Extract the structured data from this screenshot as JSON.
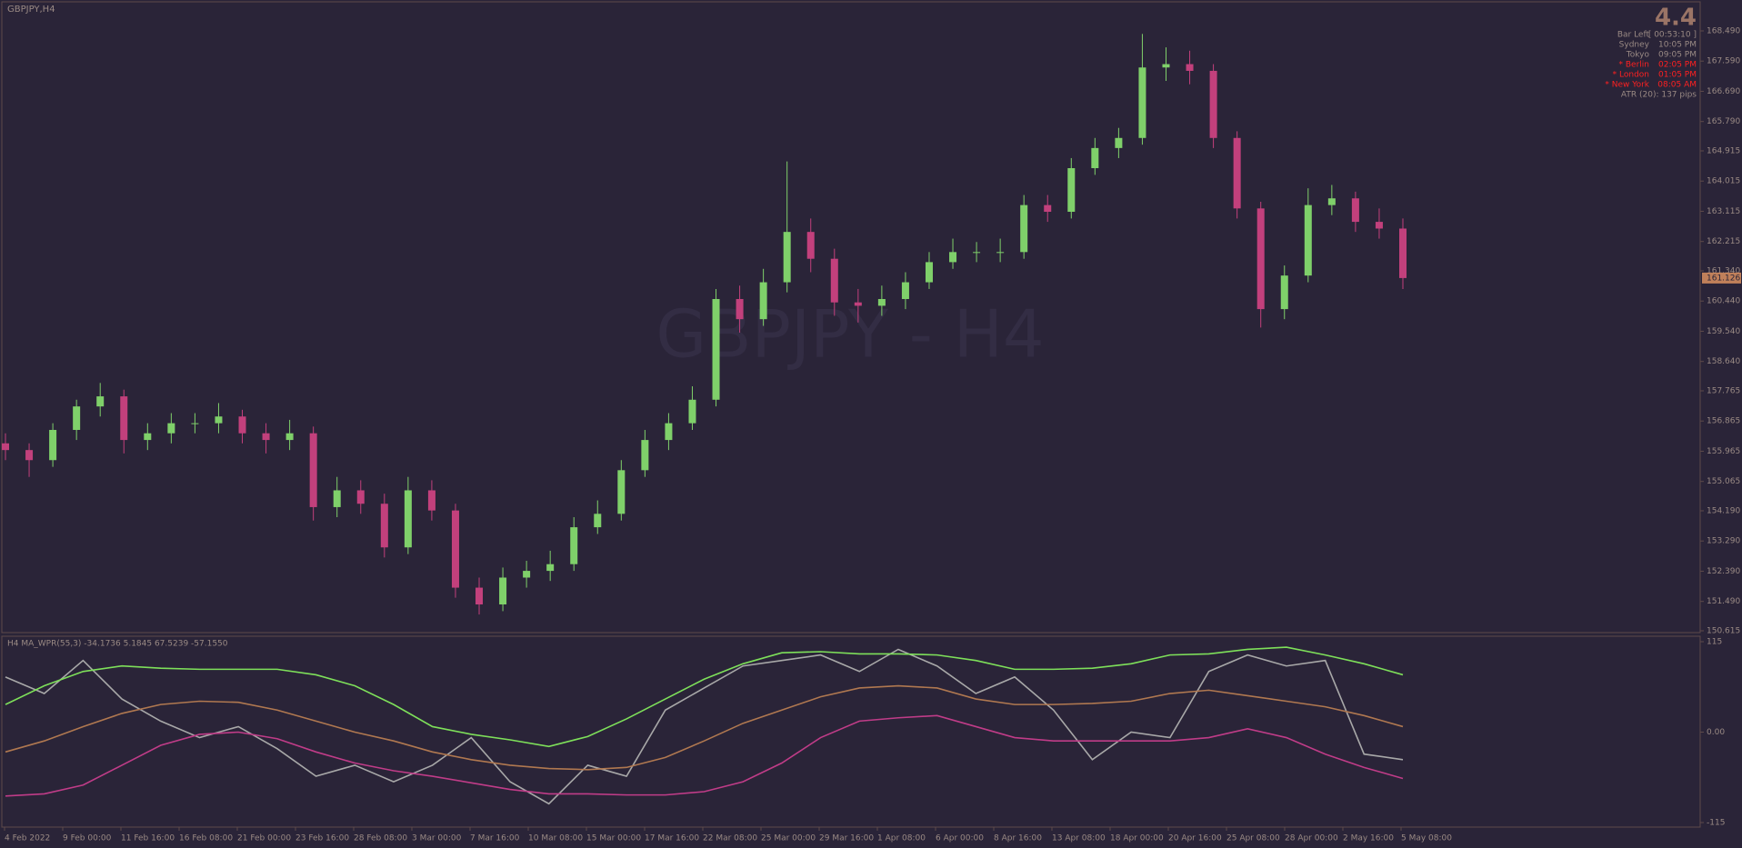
{
  "header": {
    "symbol": "GBPJPY,H4",
    "watermark": "GBPJPY - H4"
  },
  "info": {
    "value": "4.4",
    "rows": [
      {
        "label": "Bar Left",
        "value": "[ 00:53:10 ]",
        "alert": false
      },
      {
        "label": "Sydney",
        "value": "10:05 PM",
        "alert": false
      },
      {
        "label": "Tokyo",
        "value": "09:05 PM",
        "alert": false
      },
      {
        "label": "* Berlin",
        "value": "02:05 PM",
        "alert": true
      },
      {
        "label": "* London",
        "value": "01:05 PM",
        "alert": true
      },
      {
        "label": "* New York",
        "value": "08:05 AM",
        "alert": true
      }
    ],
    "atr": "ATR (20): 137 pips"
  },
  "chart_data": [
    {
      "type": "candlestick",
      "up_color": "#7fd06a",
      "down_color": "#c2407c",
      "open": [
        156.2,
        156.0,
        155.7,
        156.6,
        157.3,
        157.6,
        156.3,
        156.5,
        156.8,
        156.8,
        157.0,
        156.5,
        156.3,
        156.5,
        154.3,
        154.8,
        154.4,
        153.1,
        154.8,
        154.2,
        151.9,
        151.4,
        152.2,
        152.4,
        152.6,
        153.7,
        154.1,
        155.4,
        156.3,
        156.8,
        157.5,
        160.5,
        159.9,
        161.0,
        162.5,
        161.7,
        160.4,
        160.3,
        160.5,
        161.0,
        161.6,
        161.9,
        161.9,
        161.9,
        163.3,
        163.1,
        164.4,
        165.0,
        165.3,
        167.4,
        167.5,
        167.3,
        165.3,
        163.2,
        160.2,
        161.2,
        163.3,
        163.5,
        162.8,
        162.6
      ],
      "high": [
        156.5,
        156.2,
        156.8,
        157.5,
        158.0,
        157.8,
        156.8,
        157.1,
        157.1,
        157.4,
        157.2,
        156.8,
        156.9,
        156.7,
        155.2,
        155.1,
        154.7,
        155.2,
        155.1,
        154.4,
        152.2,
        152.5,
        152.7,
        153.0,
        154.0,
        154.5,
        155.7,
        156.6,
        157.1,
        157.9,
        160.8,
        160.9,
        161.4,
        164.6,
        162.9,
        162.0,
        160.8,
        160.9,
        161.3,
        161.9,
        162.3,
        162.2,
        162.3,
        163.6,
        163.6,
        164.7,
        165.3,
        165.6,
        168.4,
        168.0,
        167.9,
        167.5,
        165.5,
        163.4,
        161.5,
        163.8,
        163.9,
        163.7,
        163.2,
        162.9
      ],
      "low": [
        155.7,
        155.2,
        155.5,
        156.3,
        157.0,
        155.9,
        156.0,
        156.2,
        156.5,
        156.5,
        156.2,
        155.9,
        156.0,
        153.9,
        154.0,
        154.1,
        152.8,
        152.9,
        153.9,
        151.6,
        151.1,
        151.2,
        151.9,
        152.1,
        152.4,
        153.5,
        153.9,
        155.2,
        156.0,
        156.6,
        157.3,
        159.5,
        159.7,
        160.7,
        161.3,
        160.0,
        159.8,
        160.0,
        160.2,
        160.8,
        161.4,
        161.6,
        161.6,
        161.7,
        162.8,
        162.9,
        164.2,
        164.7,
        165.1,
        167.0,
        166.9,
        165.0,
        162.9,
        159.65,
        159.9,
        161.0,
        163.0,
        162.5,
        162.3,
        160.8
      ],
      "close": [
        156.0,
        155.7,
        156.6,
        157.3,
        157.6,
        156.3,
        156.5,
        156.8,
        156.8,
        157.0,
        156.5,
        156.3,
        156.5,
        154.3,
        154.8,
        154.4,
        153.1,
        154.8,
        154.2,
        151.9,
        151.4,
        152.2,
        152.4,
        152.6,
        153.7,
        154.1,
        155.4,
        156.3,
        156.8,
        157.5,
        160.5,
        159.9,
        161.0,
        162.5,
        161.7,
        160.4,
        160.3,
        160.5,
        161.0,
        161.6,
        161.9,
        161.9,
        161.9,
        163.3,
        163.1,
        164.4,
        165.0,
        165.3,
        167.4,
        167.5,
        167.3,
        165.3,
        163.2,
        160.2,
        161.2,
        163.3,
        163.5,
        162.8,
        162.6,
        161.126
      ],
      "current_price": {
        "value": 161.126,
        "label": "161.126"
      },
      "ylim": [
        150.615,
        168.49
      ],
      "yticks": [
        {
          "value": 168.49,
          "label": "168.490"
        },
        {
          "value": 167.59,
          "label": "167.590"
        },
        {
          "value": 166.69,
          "label": "166.690"
        },
        {
          "value": 165.79,
          "label": "165.790"
        },
        164.915,
        164.015,
        163.115,
        162.215,
        {
          "value": 161.34,
          "label": "161.340"
        },
        {
          "value": 160.44,
          "label": "160.440"
        },
        {
          "value": 159.54,
          "label": "159.540"
        },
        {
          "value": 158.64,
          "label": "158.640"
        },
        157.765,
        156.865,
        155.965,
        155.065,
        {
          "value": 154.19,
          "label": "154.190"
        },
        {
          "value": 153.29,
          "label": "153.290"
        },
        {
          "value": 152.39,
          "label": "152.390"
        },
        {
          "value": 151.49,
          "label": "151.490"
        },
        150.615
      ]
    },
    {
      "type": "line",
      "title": "H4 MA_WPR(55,3) -34.1736 5.1845 67.5239 -57.1550",
      "ylim": [
        -115,
        115
      ],
      "yticks": [
        115,
        {
          "value": 0,
          "label": "0.00"
        },
        -115
      ],
      "series": [
        {
          "color": "#a8a8a8",
          "values": [
            70.1,
            49.1,
            91.1,
            42.1,
            14.0,
            -7.0,
            7.0,
            -21.0,
            -56.1,
            -42.1,
            -63.1,
            -42.1,
            -7.0,
            -63.1,
            -91.1,
            -42.1,
            -56.1,
            28.0,
            56.1,
            84.1,
            91.1,
            98.1,
            77.1,
            105.2,
            84.1,
            49.1,
            70.1,
            28.0,
            -35.0,
            0,
            -7.0,
            77.1,
            98.1,
            84.1,
            91.1,
            -28.0,
            -35.0
          ]
        },
        {
          "color": "#7ee05a",
          "values": [
            35.1,
            58.9,
            77.1,
            84.1,
            81.3,
            79.9,
            79.9,
            79.9,
            72.9,
            58.9,
            35.1,
            7.0,
            -2.8,
            -9.8,
            -18.2,
            -5.6,
            16.8,
            42.1,
            67.3,
            86.9,
            100.9,
            102.3,
            99.5,
            99.5,
            98.1,
            91.1,
            79.9,
            79.9,
            81.3,
            86.9,
            98.1,
            99.5,
            105.2,
            108.0,
            98.1,
            86.9,
            72.9
          ]
        },
        {
          "color": "#b07850",
          "values": [
            -25.2,
            -11.2,
            7.0,
            23.8,
            35.1,
            39.3,
            37.9,
            28.0,
            14.0,
            0,
            -11.2,
            -25.2,
            -35.0,
            -42.1,
            -46.3,
            -47.7,
            -44.9,
            -32.2,
            -11.2,
            11.2,
            28.0,
            44.9,
            56.1,
            58.9,
            56.1,
            42.1,
            35.1,
            35.1,
            36.5,
            39.3,
            49.1,
            53.3,
            46.3,
            39.3,
            32.2,
            21.0,
            7.0
          ]
        },
        {
          "color": "#c03c88",
          "values": [
            -81.3,
            -78.5,
            -67.3,
            -42.1,
            -16.8,
            -2.8,
            0,
            -8.4,
            -25.2,
            -39.3,
            -49.1,
            -56.1,
            -64.5,
            -72.9,
            -78.5,
            -78.5,
            -79.9,
            -79.9,
            -75.7,
            -63.1,
            -39.3,
            -7.0,
            14.0,
            18.2,
            21.0,
            7.0,
            -7.0,
            -11.2,
            -11.2,
            -11.2,
            -11.2,
            -7.0,
            4.2,
            -7.0,
            -28.0,
            -44.9,
            -58.9
          ]
        }
      ]
    }
  ],
  "time_axis": {
    "labels": [
      "4 Feb 2022",
      "9 Feb 00:00",
      "11 Feb 16:00",
      "16 Feb 08:00",
      "21 Feb 00:00",
      "23 Feb 16:00",
      "28 Feb 08:00",
      "3 Mar 00:00",
      "7 Mar 16:00",
      "10 Mar 08:00",
      "15 Mar 00:00",
      "17 Mar 16:00",
      "22 Mar 08:00",
      "25 Mar 00:00",
      "29 Mar 16:00",
      "1 Apr 08:00",
      "6 Apr 00:00",
      "8 Apr 16:00",
      "13 Apr 08:00",
      "18 Apr 00:00",
      "20 Apr 16:00",
      "25 Apr 08:00",
      "28 Apr 00:00",
      "2 May 16:00",
      "5 May 08:00"
    ]
  }
}
